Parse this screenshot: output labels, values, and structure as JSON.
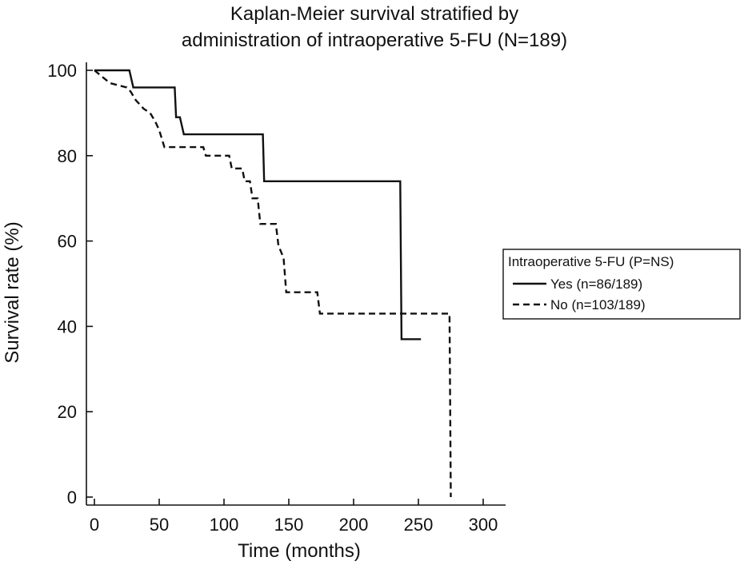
{
  "chart_data": {
    "type": "line",
    "title": "Kaplan-Meier survival stratified by administration of intraoperative 5-FU (N=189)",
    "title_lines": [
      "Kaplan-Meier survival stratified by",
      "administration of intraoperative 5-FU (N=189)"
    ],
    "xlabel": "Time (months)",
    "ylabel": "Survival rate (%)",
    "xlim": [
      0,
      300
    ],
    "ylim": [
      0,
      100
    ],
    "xticks": [
      0,
      50,
      100,
      150,
      200,
      250,
      300
    ],
    "yticks": [
      0,
      20,
      40,
      60,
      80,
      100
    ],
    "grid": false,
    "legend": {
      "title": "Intraoperative 5-FU (P=NS)",
      "position": "right"
    },
    "series": [
      {
        "name": "Yes (n=86/189)",
        "style": "solid",
        "x": [
          0,
          27,
          30,
          62,
          63,
          66,
          69,
          130,
          131,
          236,
          237,
          252
        ],
        "y": [
          100,
          100,
          96,
          96,
          89,
          89,
          85,
          85,
          74,
          74,
          37,
          37
        ]
      },
      {
        "name": "No (n=103/189)",
        "style": "dashed",
        "x": [
          0,
          4,
          8,
          12,
          25,
          28,
          32,
          35,
          38,
          43,
          45,
          47,
          50,
          52,
          54,
          56,
          84,
          86,
          104,
          106,
          114,
          116,
          120,
          122,
          126,
          128,
          140,
          142,
          146,
          148,
          172,
          174,
          274,
          275
        ],
        "y": [
          100,
          99,
          98,
          97,
          96,
          95,
          93,
          92,
          91,
          90,
          89,
          88,
          86,
          84,
          82,
          82,
          82,
          80,
          80,
          77,
          77,
          74,
          74,
          70,
          70,
          64,
          64,
          59,
          56,
          48,
          48,
          43,
          43,
          0
        ]
      }
    ]
  }
}
